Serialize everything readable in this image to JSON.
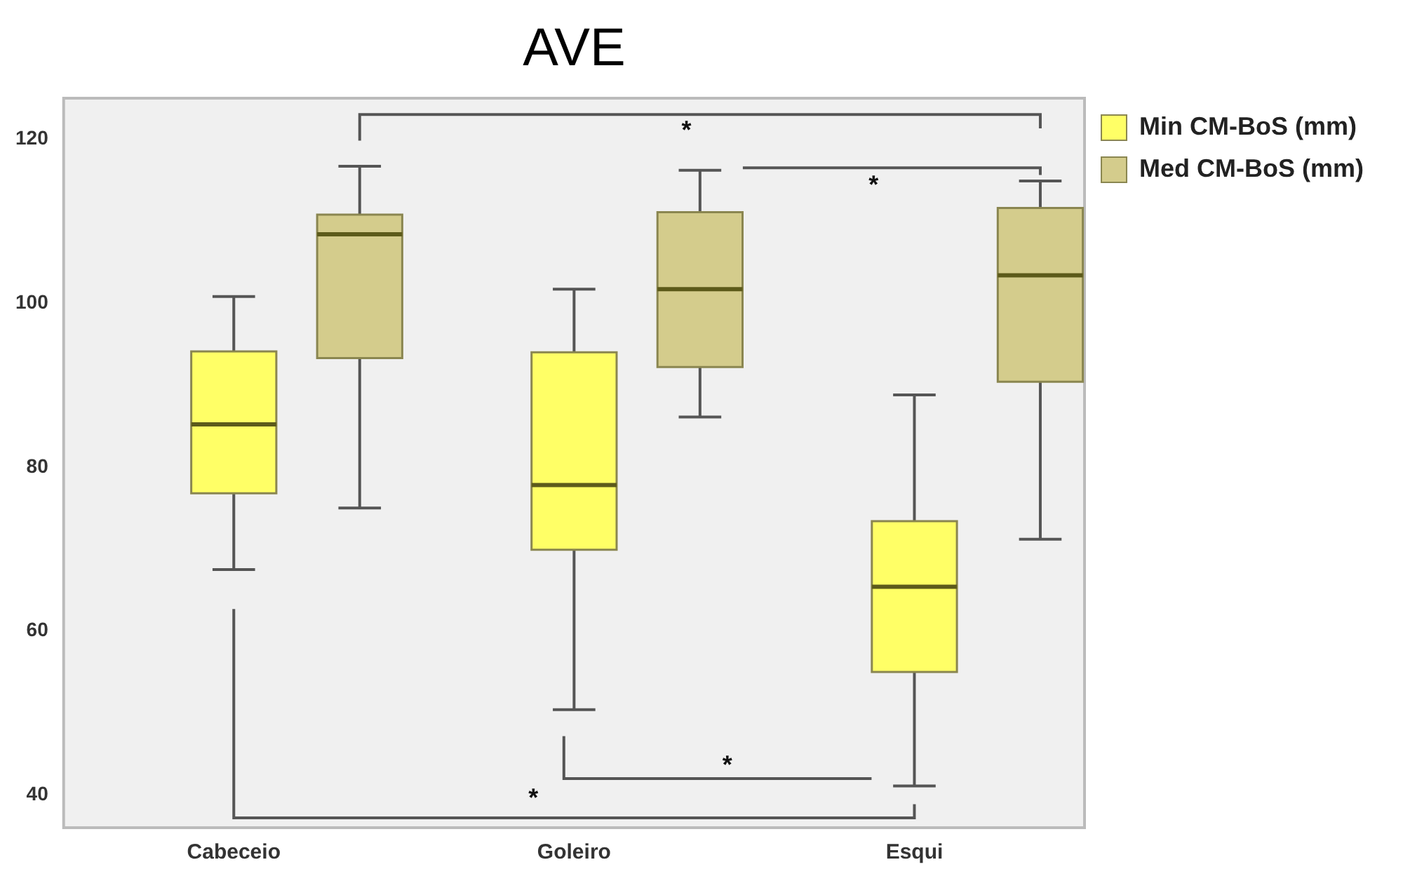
{
  "chart_data": {
    "type": "box",
    "title": "AVE",
    "categories": [
      "Cabeceio",
      "Goleiro",
      "Esqui"
    ],
    "series": [
      {
        "name": "Min CM-BoS (mm)",
        "color": "#ffff66",
        "boxes": [
          {
            "low": 67.5,
            "q1": 76.8,
            "median": 85.2,
            "q3": 94.1,
            "high": 100.8
          },
          {
            "low": 50.4,
            "q1": 69.9,
            "median": 77.8,
            "q3": 94.0,
            "high": 101.7
          },
          {
            "low": 41.1,
            "q1": 55.0,
            "median": 65.4,
            "q3": 73.4,
            "high": 88.8
          }
        ]
      },
      {
        "name": "Med CM-BoS (mm)",
        "color": "#d4cc8c",
        "boxes": [
          {
            "low": 75.0,
            "q1": 93.3,
            "median": 108.4,
            "q3": 110.8,
            "high": 116.7
          },
          {
            "low": 86.1,
            "q1": 92.2,
            "median": 101.7,
            "q3": 111.1,
            "high": 116.2
          },
          {
            "low": 71.2,
            "q1": 90.4,
            "median": 103.4,
            "q3": 111.6,
            "high": 114.9
          }
        ]
      }
    ],
    "ylim": [
      36,
      125
    ],
    "yticks": [
      40,
      60,
      80,
      100,
      120
    ],
    "grid": false,
    "legend": "top right",
    "annotations": [
      "*",
      "*",
      "*",
      "*"
    ]
  }
}
